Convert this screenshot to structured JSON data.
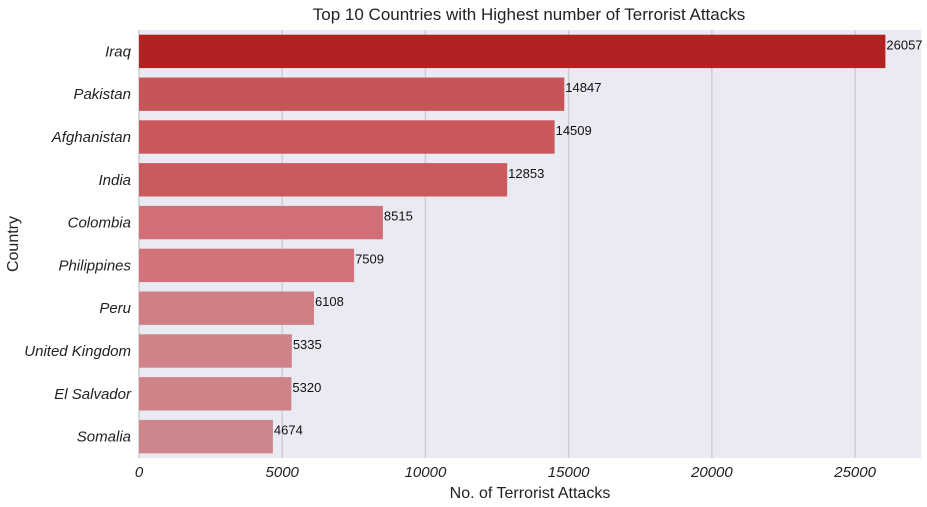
{
  "chart_data": {
    "type": "bar",
    "orientation": "horizontal",
    "title": "Top 10 Countries with Highest number of Terrorist Attacks",
    "xlabel": "No. of Terrorist Attacks",
    "ylabel": "Country",
    "categories": [
      "Iraq",
      "Pakistan",
      "Afghanistan",
      "India",
      "Colombia",
      "Philippines",
      "Peru",
      "United Kingdom",
      "El Salvador",
      "Somalia"
    ],
    "values": [
      26057,
      14847,
      14509,
      12853,
      8515,
      7509,
      6108,
      5335,
      5320,
      4674
    ],
    "value_labels": [
      "26057",
      "14847",
      "14509",
      "12853",
      "8515",
      "7509",
      "6108",
      "5335",
      "5320",
      "4674"
    ],
    "xlim": [
      0,
      27300
    ],
    "xticks": [
      0,
      5000,
      10000,
      15000,
      20000,
      25000
    ],
    "xtick_labels": [
      "0",
      "5000",
      "10000",
      "15000",
      "20000",
      "25000"
    ],
    "grid": true,
    "background_color": "#eaeaf2",
    "grid_color": "#cdcdd3",
    "bar_colors": [
      "#b22222",
      "#c85458",
      "#c9575b",
      "#ca5a5e",
      "#d06f75",
      "#d0737a",
      "#d07e85",
      "#cf8288",
      "#cf8389",
      "#cd868b"
    ]
  }
}
